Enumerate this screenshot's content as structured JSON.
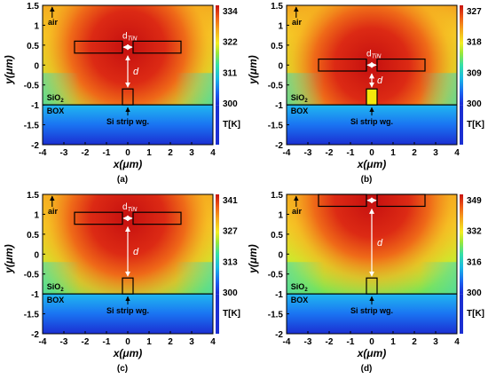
{
  "figure": {
    "panels": [
      {
        "caption": "(a)",
        "colorbar_ticks": [
          "334",
          "322",
          "311",
          "300"
        ],
        "colorbar_unit": "T[K]",
        "heater_y": [
          0.3,
          0.6
        ],
        "label_air": "air",
        "label_sio2": "SiO",
        "label_sio2_sub": "2",
        "label_box": "BOX",
        "label_wg": "Si strip wg.",
        "label_dtin": "d",
        "label_dtin_sub": "TiN",
        "label_d": "d"
      },
      {
        "caption": "(b)",
        "colorbar_ticks": [
          "327",
          "318",
          "309",
          "300"
        ],
        "colorbar_unit": "T[K]",
        "heater_y": [
          -0.15,
          0.15
        ],
        "label_air": "air",
        "label_sio2": "SiO",
        "label_sio2_sub": "2",
        "label_box": "BOX",
        "label_wg": "Si strip wg.",
        "label_dtin": "d",
        "label_dtin_sub": "TiN",
        "label_d": "d"
      },
      {
        "caption": "(c)",
        "colorbar_ticks": [
          "341",
          "327",
          "313",
          "300"
        ],
        "colorbar_unit": "T[K]",
        "heater_y": [
          0.75,
          1.05
        ],
        "label_air": "air",
        "label_sio2": "SiO",
        "label_sio2_sub": "2",
        "label_box": "BOX",
        "label_wg": "Si strip wg.",
        "label_dtin": "d",
        "label_dtin_sub": "TiN",
        "label_d": "d"
      },
      {
        "caption": "(d)",
        "colorbar_ticks": [
          "349",
          "332",
          "316",
          "300"
        ],
        "colorbar_unit": "T[K]",
        "heater_y": [
          1.2,
          1.5
        ],
        "label_air": "air",
        "label_sio2": "SiO",
        "label_sio2_sub": "2",
        "label_box": "BOX",
        "label_wg": "Si strip wg.",
        "label_dtin": "d",
        "label_dtin_sub": "TiN",
        "label_d": "d"
      }
    ],
    "axes": {
      "x_ticks": [
        "-4",
        "-3",
        "-2",
        "-1",
        "0",
        "1",
        "2",
        "3",
        "4"
      ],
      "y_ticks": [
        "1.5",
        "1",
        "0.5",
        "0",
        "-0.5",
        "-1",
        "-1.5",
        "-2"
      ],
      "x_label": "x(μm)",
      "y_label": "y(μm)",
      "xlim": [
        -4,
        4
      ],
      "ylim": [
        -2,
        1.5
      ]
    },
    "geometry_data_units": {
      "heater_left_x": [
        -2.5,
        -0.25
      ],
      "heater_right_x": [
        0.25,
        2.5
      ],
      "waveguide_x": [
        -0.25,
        0.25
      ],
      "waveguide_y": [
        -1.0,
        -0.6
      ],
      "box_interface_y": -1.0
    },
    "colors": {
      "hot": "#c81010",
      "cold": "#1034d8",
      "waveguide_fill_a": "#f5e80c",
      "waveguide_fill_other": "#39c7d9"
    }
  }
}
